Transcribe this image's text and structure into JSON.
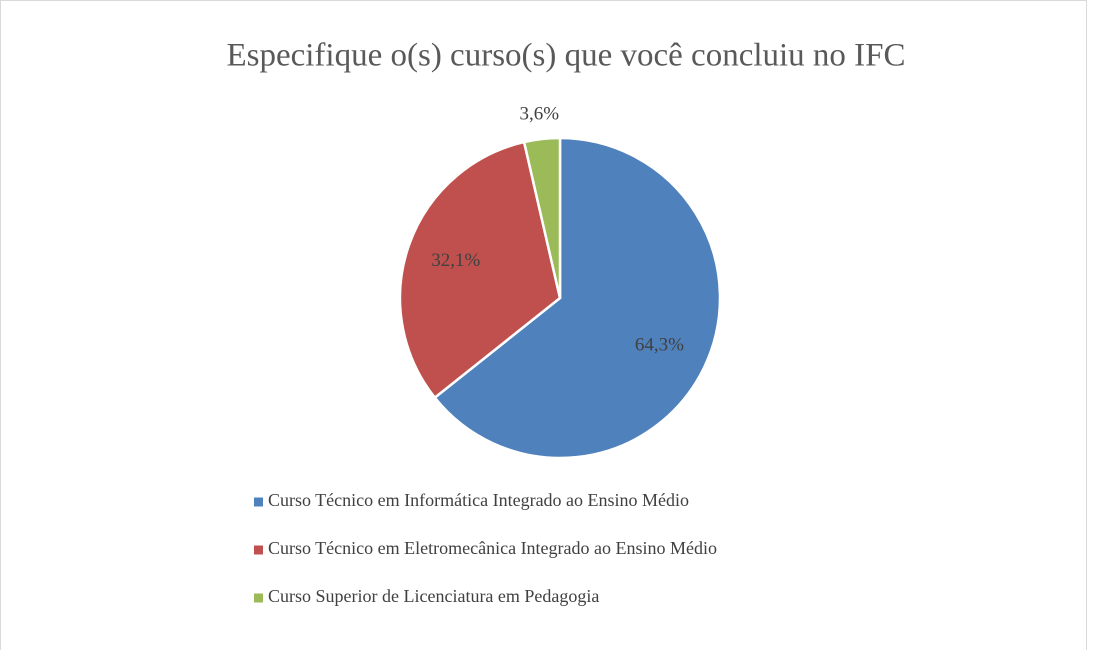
{
  "chart_data": {
    "type": "pie",
    "title": "Especifique o(s) curso(s) que você concluiu no IFC",
    "categories": [
      "Curso Técnico em Informática Integrado ao Ensino Médio",
      "Curso Técnico em Eletromecânica Integrado ao Ensino Médio",
      "Curso Superior de Licenciatura em Pedagogia"
    ],
    "values": [
      64.3,
      32.1,
      3.6
    ],
    "value_labels": [
      "64,3%",
      "32,1%",
      "3,6%"
    ],
    "colors": [
      "#4f81bd",
      "#c0504d",
      "#9bbb59"
    ],
    "legend": "bottom"
  }
}
